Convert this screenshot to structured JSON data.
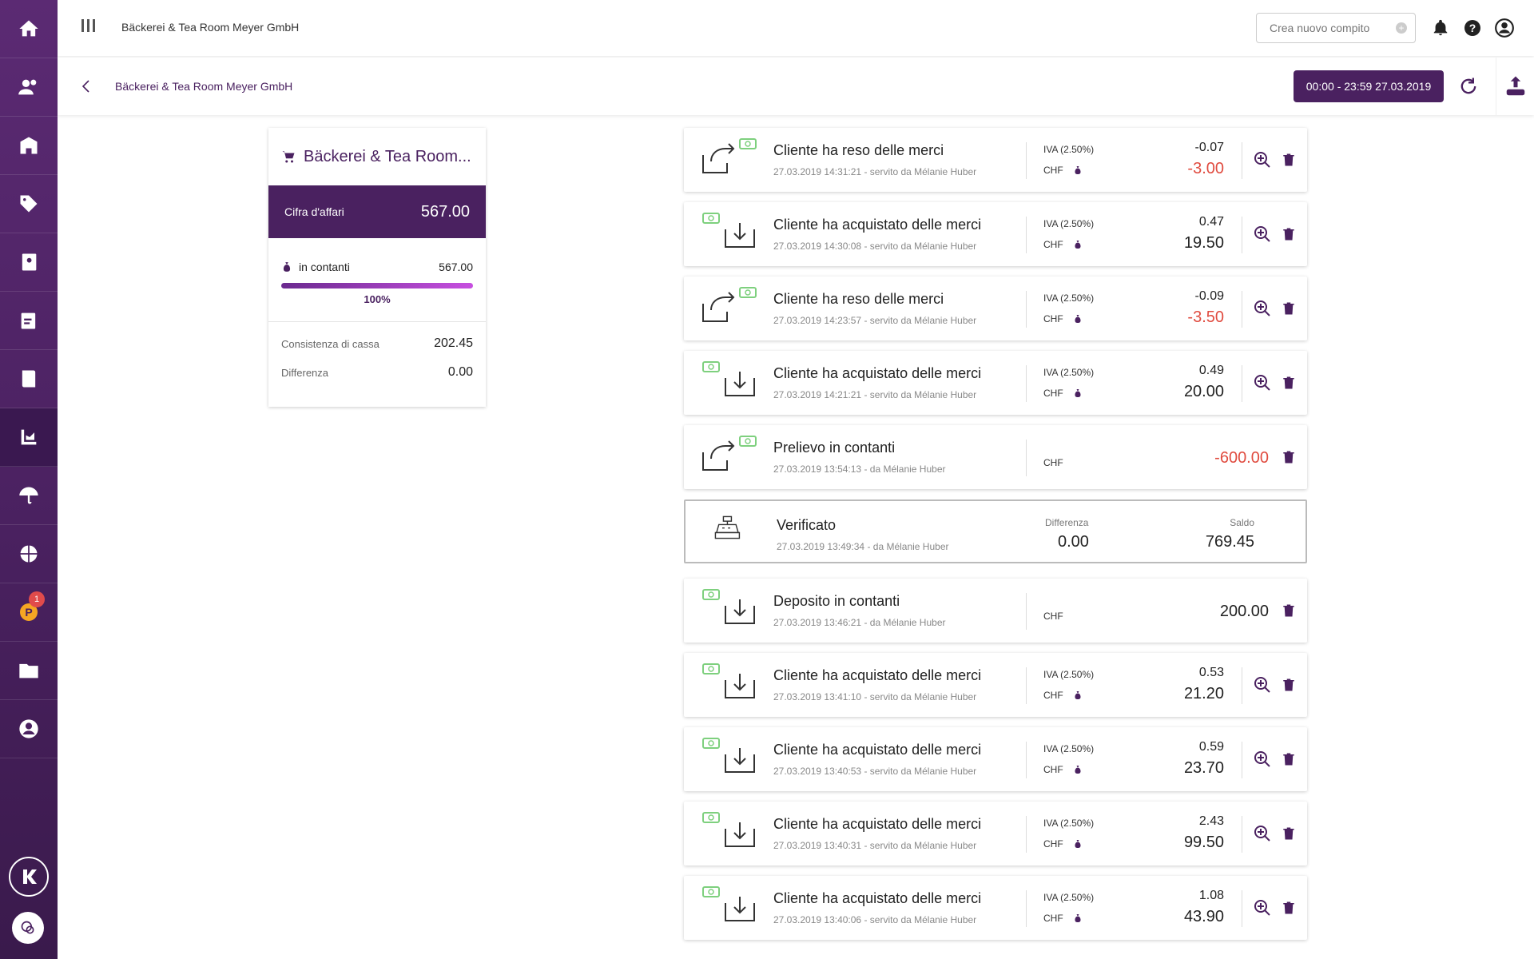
{
  "topbar": {
    "title": "Bäckerei & Tea Room Meyer GmbH",
    "task_placeholder": "Crea nuovo compito"
  },
  "subheader": {
    "title": "Bäckerei & Tea Room Meyer GmbH",
    "date_range": "00:00 - 23:59 27.03.2019"
  },
  "sidebar": {
    "badge_count": "1",
    "coin_letter": "P"
  },
  "summary": {
    "title": "Bäckerei & Tea Room...",
    "turnover_label": "Cifra d'affari",
    "turnover_value": "567.00",
    "cash_label": "in contanti",
    "cash_value": "567.00",
    "cash_percent": "100%",
    "cash_fraction": 1.0,
    "stock_label": "Consistenza di cassa",
    "stock_value": "202.45",
    "diff_label": "Differenza",
    "diff_value": "0.00"
  },
  "transactions": [
    {
      "title": "Cliente ha reso delle merci",
      "meta": "27.03.2019 14:31:21 - servito da Mélanie Huber",
      "iva": "IVA (2.50%)",
      "cur": "CHF",
      "vat": "-0.07",
      "amount": "-3.00"
    },
    {
      "title": "Cliente ha acquistato delle merci",
      "meta": "27.03.2019 14:30:08 - servito da Mélanie Huber",
      "iva": "IVA (2.50%)",
      "cur": "CHF",
      "vat": "0.47",
      "amount": "19.50"
    },
    {
      "title": "Cliente ha reso delle merci",
      "meta": "27.03.2019 14:23:57 - servito da Mélanie Huber",
      "iva": "IVA (2.50%)",
      "cur": "CHF",
      "vat": "-0.09",
      "amount": "-3.50"
    },
    {
      "title": "Cliente ha acquistato delle merci",
      "meta": "27.03.2019 14:21:21 - servito da Mélanie Huber",
      "iva": "IVA (2.50%)",
      "cur": "CHF",
      "vat": "0.49",
      "amount": "20.00"
    },
    {
      "title": "Prelievo in contanti",
      "meta": "27.03.2019 13:54:13 - da Mélanie Huber",
      "cur": "CHF",
      "amount": "-600.00"
    },
    {
      "title": "Verificato",
      "meta": "27.03.2019 13:49:34 - da Mélanie Huber",
      "diff_label": "Differenza",
      "diff_value": "0.00",
      "saldo_label": "Saldo",
      "saldo_value": "769.45"
    },
    {
      "title": "Deposito in contanti",
      "meta": "27.03.2019 13:46:21 - da Mélanie Huber",
      "cur": "CHF",
      "amount": "200.00"
    },
    {
      "title": "Cliente ha acquistato delle merci",
      "meta": "27.03.2019 13:41:10 - servito da Mélanie Huber",
      "iva": "IVA (2.50%)",
      "cur": "CHF",
      "vat": "0.53",
      "amount": "21.20"
    },
    {
      "title": "Cliente ha acquistato delle merci",
      "meta": "27.03.2019 13:40:53 - servito da Mélanie Huber",
      "iva": "IVA (2.50%)",
      "cur": "CHF",
      "vat": "0.59",
      "amount": "23.70"
    },
    {
      "title": "Cliente ha acquistato delle merci",
      "meta": "27.03.2019 13:40:31 - servito da Mélanie Huber",
      "iva": "IVA (2.50%)",
      "cur": "CHF",
      "vat": "2.43",
      "amount": "99.50"
    },
    {
      "title": "Cliente ha acquistato delle merci",
      "meta": "27.03.2019 13:40:06 - servito da Mélanie Huber",
      "iva": "IVA (2.50%)",
      "cur": "CHF",
      "vat": "1.08",
      "amount": "43.90"
    }
  ],
  "colors": {
    "brand": "#4a2160",
    "negative": "#e04b3f",
    "cash_icon": "#7ed07e"
  }
}
